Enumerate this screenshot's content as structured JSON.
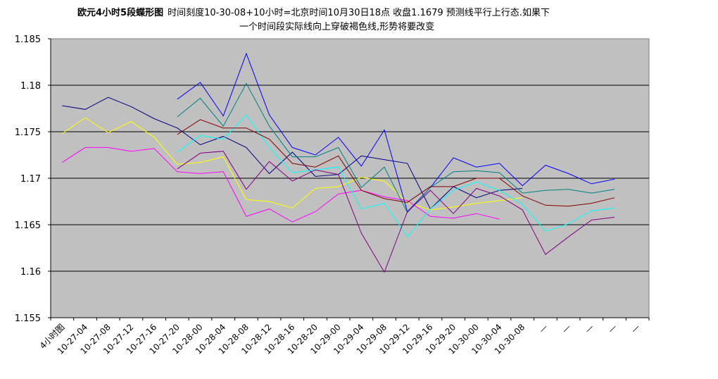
{
  "chart_data": {
    "type": "line",
    "title_bold": "欧元4小时5段蝶形图",
    "title_line1": "时间刻度10-30-08+10小时=北京时间10月30日18点 收盘1.1679 预测线平行上行态.如果下",
    "title_line2": "一个时间段实际线向上穿破褐色线,形势将要改变",
    "ylim": [
      1.155,
      1.185
    ],
    "yticks": [
      "1.155",
      "1.16",
      "1.165",
      "1.17",
      "1.175",
      "1.18",
      "1.185"
    ],
    "grid": true,
    "categories": [
      "4小时图",
      "10-27-04",
      "10-27-08",
      "10-27-12",
      "10-27-16",
      "10-27-20",
      "10-28-00",
      "10-28-04",
      "10-28-08",
      "10-28-12",
      "10-28-16",
      "10-28-20",
      "10-29-00",
      "10-29-04",
      "10-29-08",
      "10-29-12",
      "10-29-16",
      "10-29-20",
      "10-30-00",
      "10-30-04",
      "10-30-08",
      "—",
      "—",
      "—",
      "—",
      "—"
    ],
    "series": [
      {
        "color": "#000080",
        "values": [
          1.1778,
          1.1774,
          1.1787,
          1.1777,
          1.1764,
          1.1754,
          1.1736,
          1.1745,
          1.1733,
          1.1705,
          1.1728,
          1.1702,
          1.1704,
          1.1724,
          1.172,
          1.1716,
          1.1667,
          1.1691,
          1.1679,
          1.1687,
          1.1689,
          null,
          null,
          null,
          null,
          null
        ]
      },
      {
        "color": "#FFFF00",
        "values": [
          1.1748,
          1.1765,
          1.1749,
          1.1761,
          1.1744,
          1.1715,
          1.1717,
          1.1723,
          1.1677,
          1.1675,
          1.1668,
          1.1689,
          1.1691,
          1.1701,
          1.1697,
          1.1674,
          1.1666,
          1.1669,
          1.1673,
          1.1676,
          1.1679,
          null,
          null,
          null,
          null,
          null
        ]
      },
      {
        "color": "#FF00FF",
        "values": [
          1.1717,
          1.1733,
          1.1733,
          1.1729,
          1.1732,
          1.1707,
          1.1705,
          1.1707,
          1.1659,
          1.1667,
          1.1653,
          1.1664,
          1.1683,
          1.1687,
          1.168,
          1.1676,
          1.1659,
          1.1657,
          1.1662,
          1.1656,
          null,
          null,
          null,
          null,
          null,
          null
        ]
      },
      {
        "color": "#0000FF",
        "values": [
          null,
          null,
          null,
          null,
          null,
          1.1785,
          1.1803,
          1.1767,
          1.1834,
          1.1768,
          1.1733,
          1.1725,
          1.1744,
          1.1713,
          1.1752,
          1.1664,
          1.169,
          1.1722,
          1.1712,
          1.1716,
          1.1692,
          1.1714,
          1.1705,
          1.1694,
          1.1699,
          null
        ]
      },
      {
        "color": "#008080",
        "values": [
          null,
          null,
          null,
          null,
          null,
          1.1766,
          1.1786,
          1.1756,
          1.1802,
          1.1756,
          1.1723,
          1.1723,
          1.1733,
          1.169,
          1.1712,
          1.1663,
          1.169,
          1.1707,
          1.1708,
          1.1706,
          1.1684,
          1.1687,
          1.1688,
          1.1684,
          1.1688,
          null
        ]
      },
      {
        "color": "#00FFFF",
        "values": [
          null,
          null,
          null,
          null,
          null,
          1.1728,
          1.1746,
          1.1742,
          1.1768,
          1.1733,
          1.1706,
          1.1709,
          1.1712,
          1.1667,
          1.1673,
          1.1637,
          1.1667,
          1.1687,
          1.1696,
          1.1687,
          1.1672,
          1.1643,
          1.1651,
          1.1665,
          1.1668,
          null
        ]
      },
      {
        "color": "#800000",
        "values": [
          null,
          null,
          null,
          null,
          null,
          1.1747,
          1.1763,
          1.1754,
          1.1754,
          1.1742,
          1.1716,
          1.1712,
          1.1724,
          1.1687,
          1.1678,
          1.1674,
          1.1691,
          1.1691,
          1.17,
          1.17,
          1.1681,
          1.1671,
          1.167,
          1.1673,
          1.1679,
          null
        ]
      },
      {
        "color": "#800080",
        "values": [
          null,
          null,
          null,
          null,
          null,
          1.171,
          1.1727,
          1.1729,
          1.1688,
          1.1718,
          1.1697,
          1.1709,
          1.1704,
          1.1641,
          1.1599,
          1.1664,
          1.1687,
          1.1662,
          1.1689,
          1.1681,
          1.1666,
          1.1618,
          1.1637,
          1.1655,
          1.1658,
          null
        ]
      }
    ]
  }
}
